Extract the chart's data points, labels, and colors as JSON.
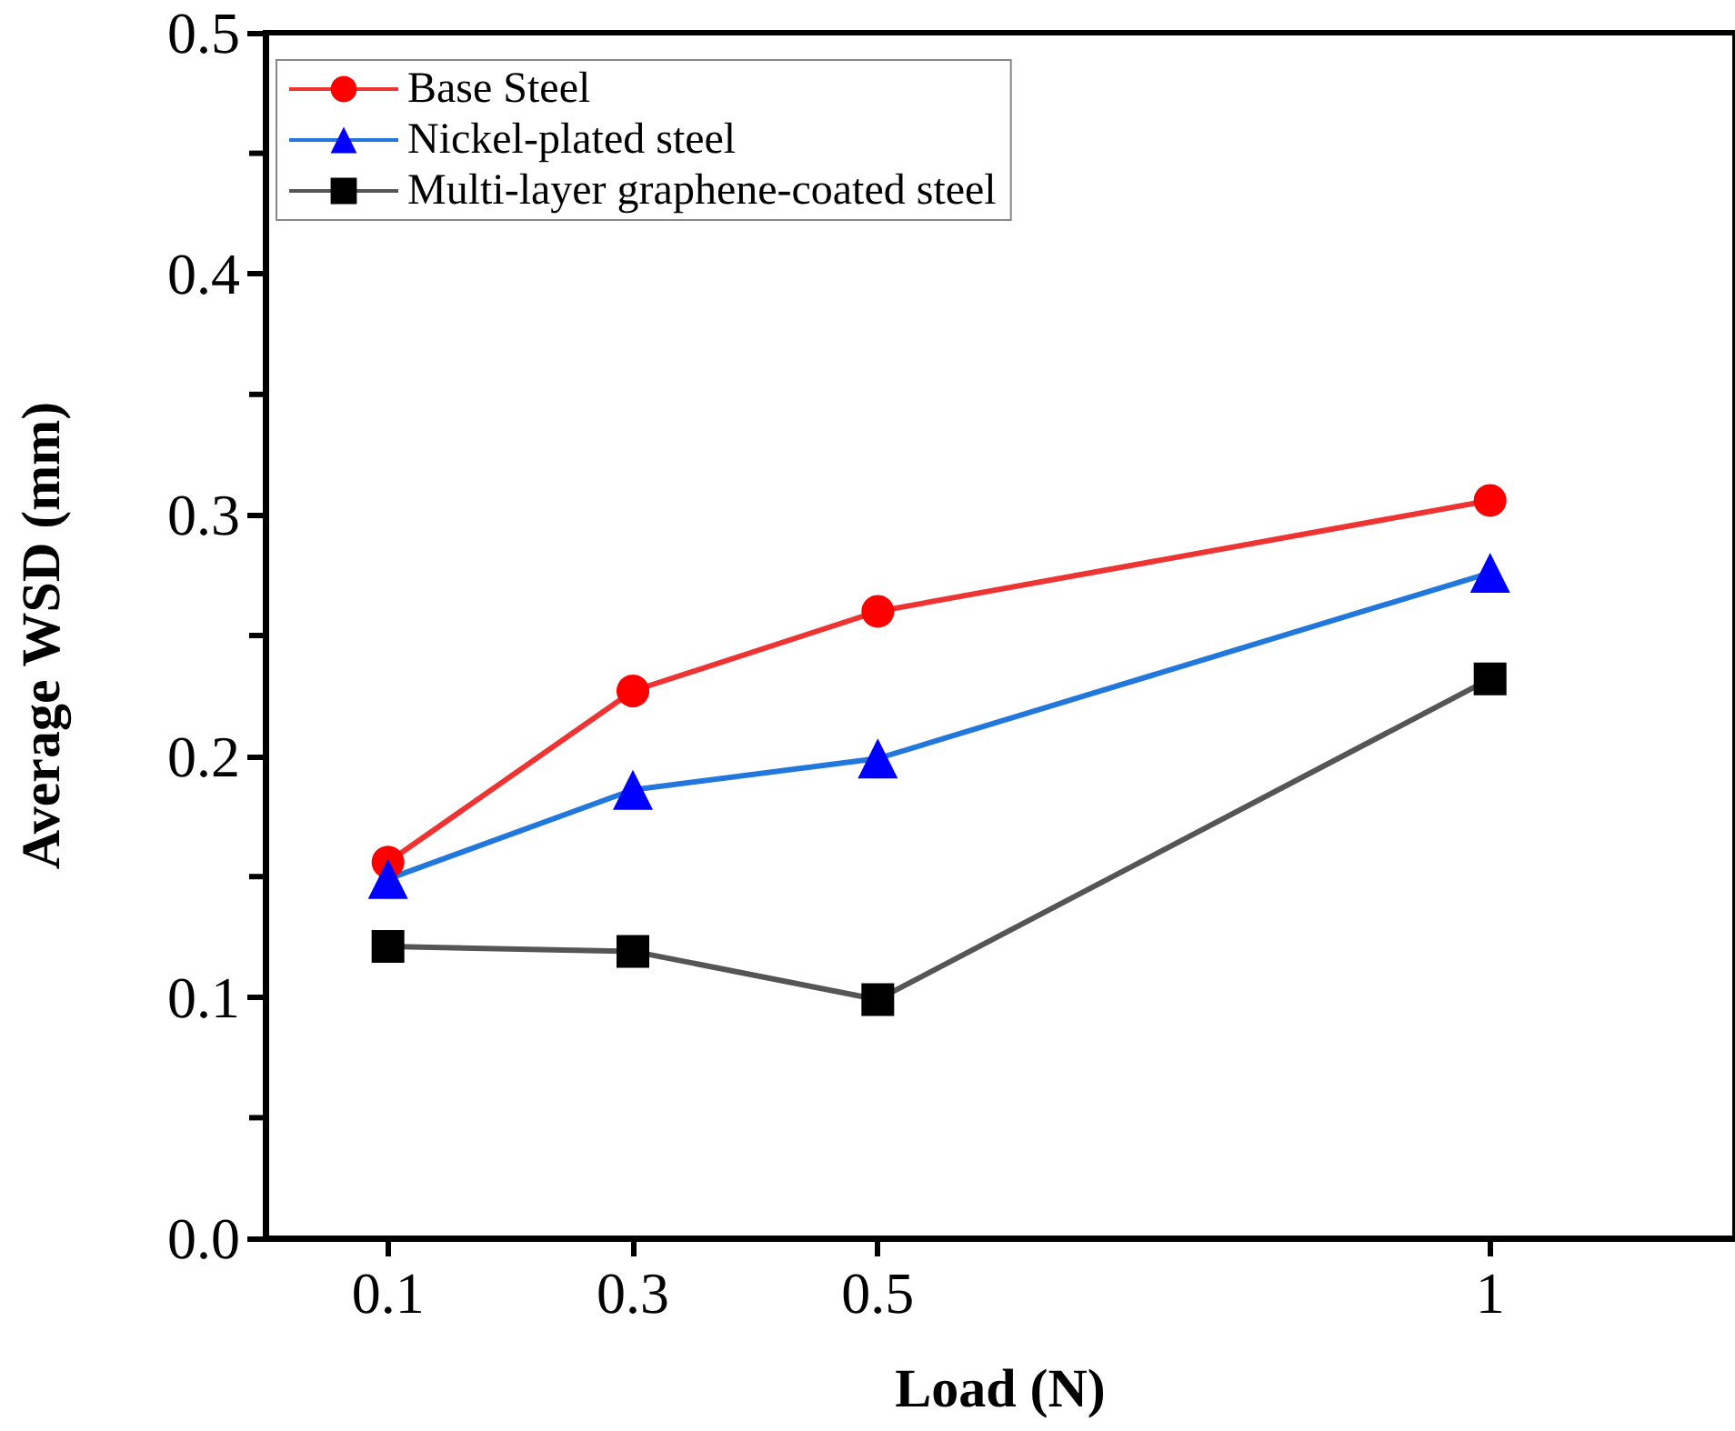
{
  "chart_data": {
    "type": "line",
    "xlabel": "Load (N)",
    "ylabel": "Average WSD (mm)",
    "x": [
      0.1,
      0.3,
      0.5,
      1
    ],
    "xlim": [
      0,
      1.2
    ],
    "xticks": [
      0.1,
      0.3,
      0.5,
      1
    ],
    "ylim": [
      0,
      0.5
    ],
    "yticks": [
      {
        "value": 0,
        "label": "0.0"
      },
      0.1,
      0.2,
      0.3,
      0.4,
      0.5
    ],
    "grid": false,
    "legend": "top left",
    "series": [
      {
        "name": "Base Steel",
        "color": "#ee3333",
        "marker": "circle",
        "values": [
          0.156,
          0.227,
          0.26,
          0.306
        ]
      },
      {
        "name": "Nickel-plated steel",
        "color": "#2277dd",
        "marker": "triangle",
        "values": [
          0.149,
          0.186,
          0.199,
          0.276
        ]
      },
      {
        "name": "Multi-layer graphene-coated steel",
        "color": "#555555",
        "marker": "square",
        "values": [
          0.121,
          0.119,
          0.099,
          0.232
        ]
      }
    ]
  }
}
